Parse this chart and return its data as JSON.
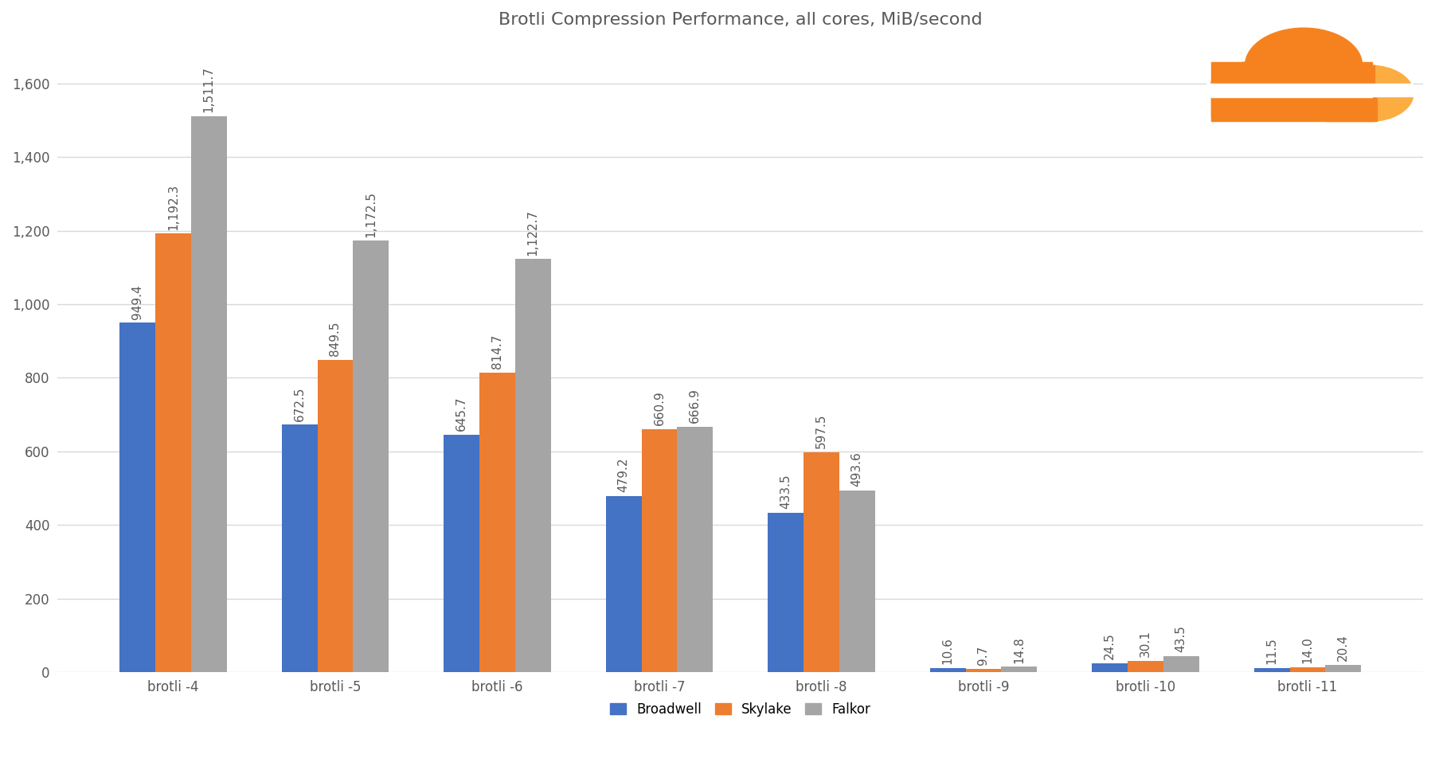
{
  "title": "Brotli Compression Performance, all cores, MiB/second",
  "categories": [
    "brotli -4",
    "brotli -5",
    "brotli -6",
    "brotli -7",
    "brotli -8",
    "brotli -9",
    "brotli -10",
    "brotli -11"
  ],
  "series": {
    "Broadwell": [
      949.4,
      672.5,
      645.7,
      479.2,
      433.5,
      10.6,
      24.5,
      11.5
    ],
    "Skylake": [
      1192.3,
      849.5,
      814.7,
      660.9,
      597.5,
      9.7,
      30.1,
      14.0
    ],
    "Falkor": [
      1511.7,
      1172.5,
      1122.7,
      666.9,
      493.6,
      14.8,
      43.5,
      20.4
    ]
  },
  "colors": {
    "Broadwell": "#4472C4",
    "Skylake": "#ED7D31",
    "Falkor": "#A5A5A5"
  },
  "ylim": [
    0,
    1700
  ],
  "yticks": [
    0,
    200,
    400,
    600,
    800,
    1000,
    1200,
    1400,
    1600
  ],
  "background_color": "#FFFFFF",
  "grid_color": "#D9D9D9",
  "title_fontsize": 16,
  "tick_fontsize": 12,
  "label_fontsize": 11,
  "legend_fontsize": 12,
  "bar_width": 0.22,
  "title_color": "#595959",
  "tick_color": "#595959",
  "logo_main_color": "#F6821F",
  "logo_light_color": "#FBAD41"
}
